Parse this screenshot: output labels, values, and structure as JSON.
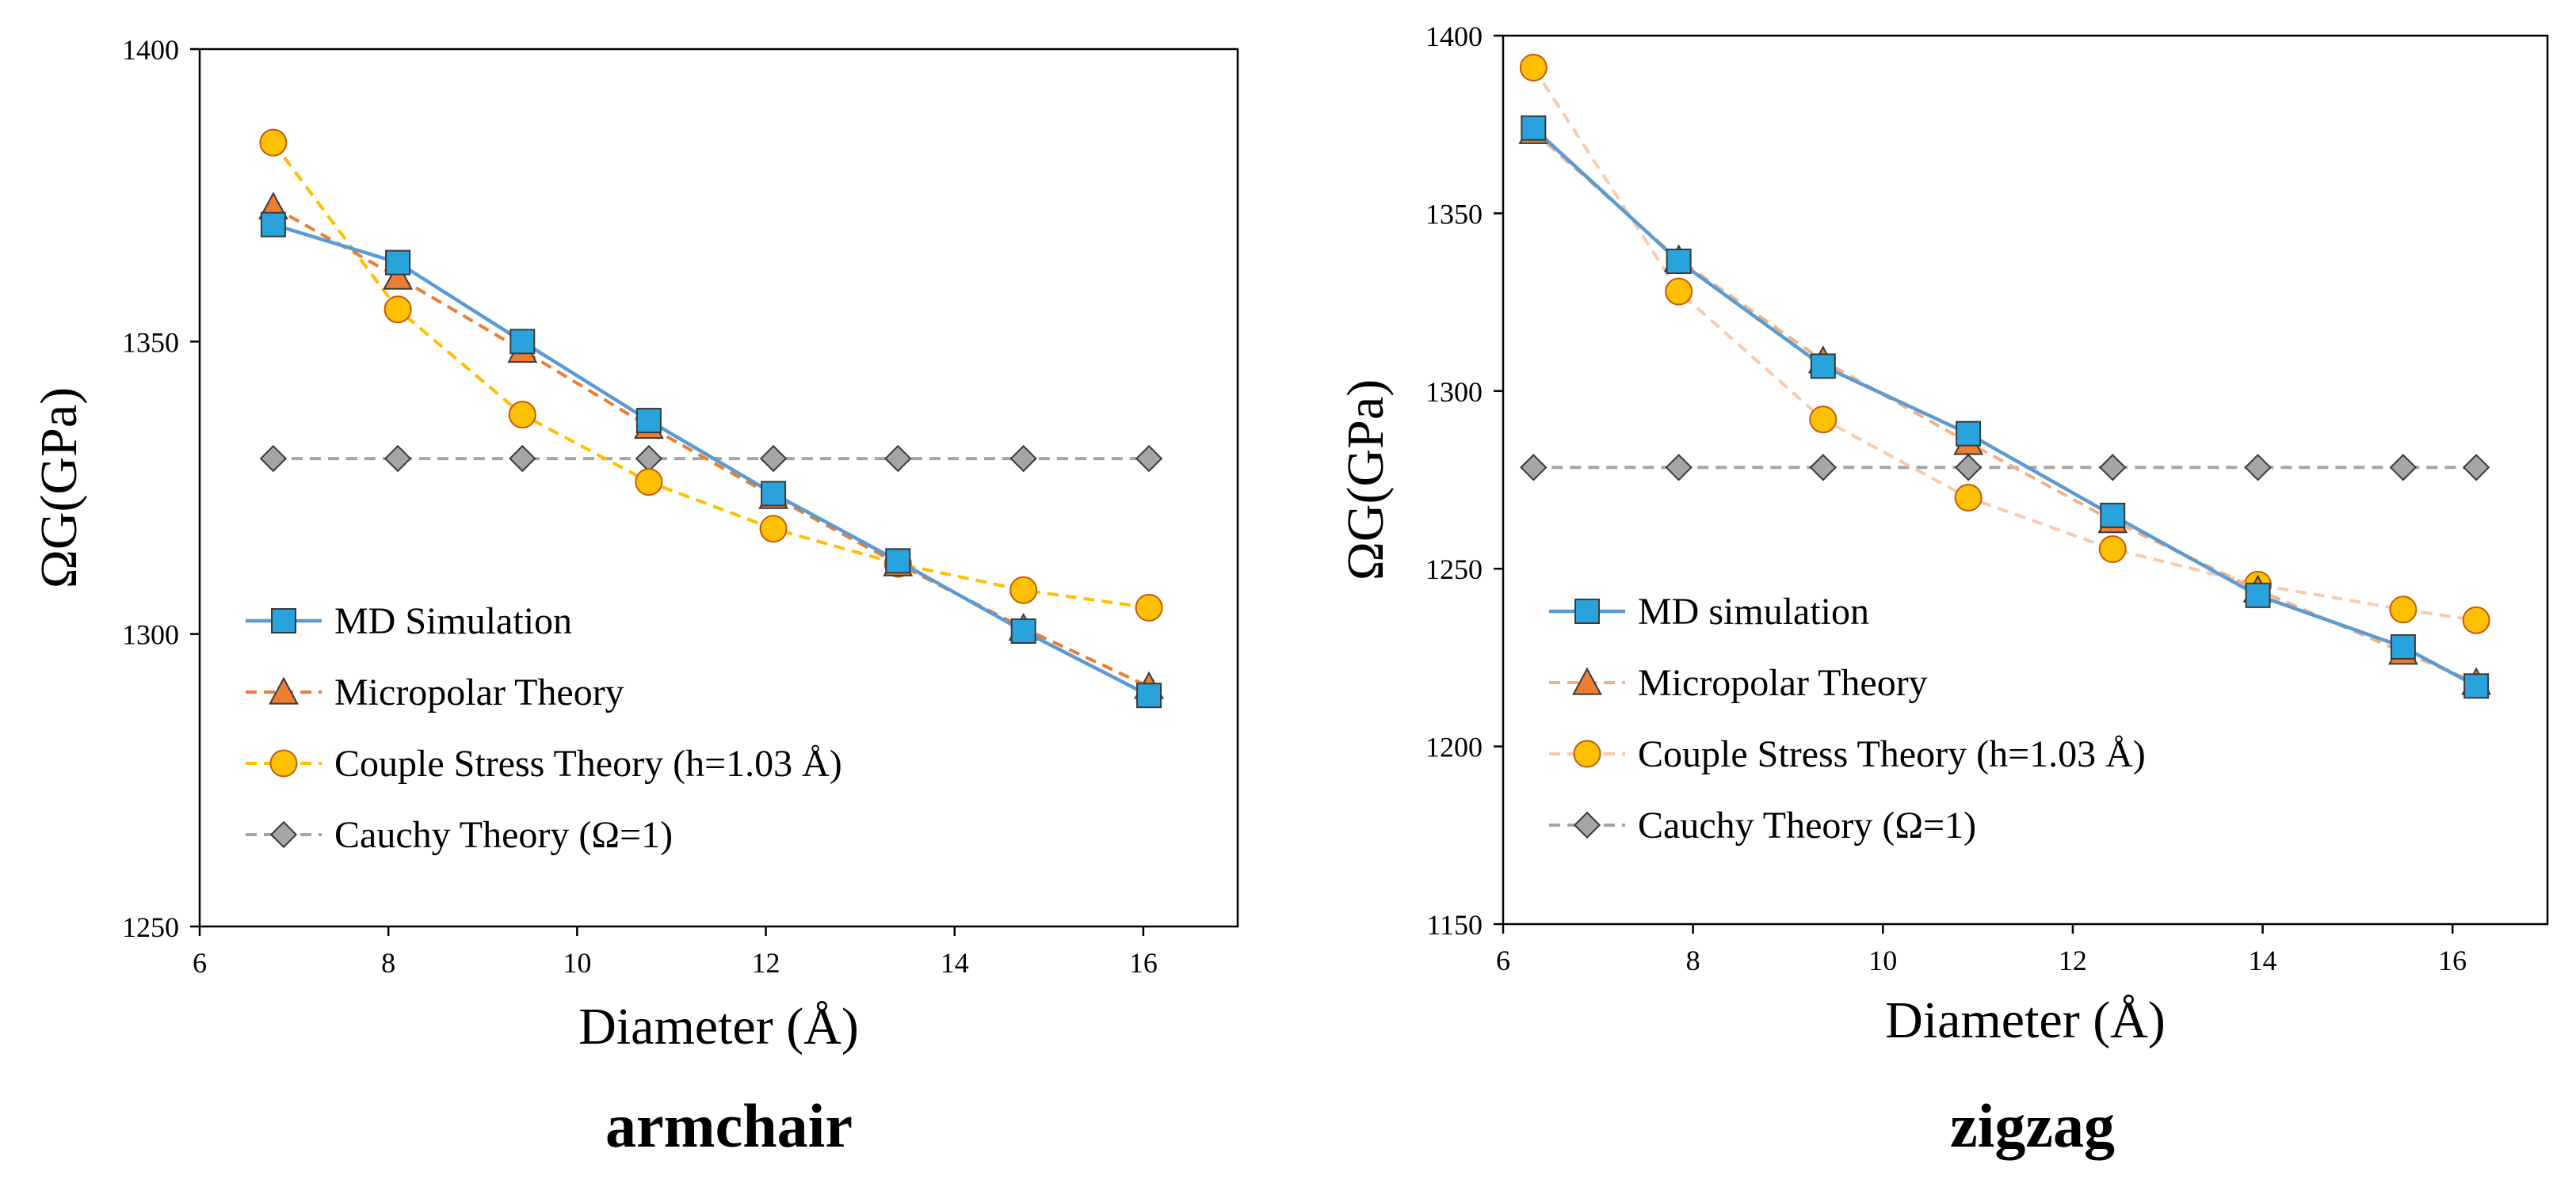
{
  "chart_data": [
    {
      "type": "line",
      "subtitle": "armchair",
      "xlabel": "Diameter (Å)",
      "ylabel": "ΩG(GPa)",
      "xlim": [
        6,
        17
      ],
      "ylim": [
        1250,
        1400
      ],
      "xticks": [
        6,
        8,
        10,
        12,
        14,
        16
      ],
      "yticks": [
        1250,
        1300,
        1350,
        1400
      ],
      "legend_position": "bottom-left",
      "grid": false,
      "series": [
        {
          "name": "MD Simulation",
          "marker": "square",
          "color": "#29A3DC",
          "line_color": "#5B9BD5",
          "line_style": "solid",
          "x": [
            6.78,
            8.1,
            9.42,
            10.76,
            12.08,
            13.4,
            14.73,
            16.06
          ],
          "y": [
            1370,
            1363.5,
            1350,
            1336.5,
            1324,
            1312.5,
            1300.5,
            1289.5
          ]
        },
        {
          "name": "Micropolar Theory",
          "marker": "triangle",
          "color": "#ED7D31",
          "line_color": "#ED7D31",
          "line_style": "dashed",
          "x": [
            6.78,
            8.1,
            9.42,
            10.76,
            12.08,
            13.4,
            14.73,
            16.06
          ],
          "y": [
            1373,
            1361,
            1348.5,
            1335.5,
            1323.5,
            1312,
            1301,
            1291
          ]
        },
        {
          "name": "Couple Stress Theory (h=1.03 Å)",
          "marker": "circle",
          "color": "#FFC000",
          "line_color": "#FFC000",
          "line_style": "dashed",
          "x": [
            6.78,
            8.1,
            9.42,
            10.76,
            12.08,
            13.4,
            14.73,
            16.06
          ],
          "y": [
            1384,
            1355.5,
            1337.5,
            1326,
            1318,
            1312,
            1307.5,
            1304.5
          ]
        },
        {
          "name": "Cauchy Theory (Ω=1)",
          "marker": "diamond",
          "color": "#A5A5A5",
          "line_color": "#A5A5A5",
          "line_style": "dashed",
          "x": [
            6.78,
            8.1,
            9.42,
            10.76,
            12.08,
            13.4,
            14.73,
            16.06
          ],
          "y": [
            1330,
            1330,
            1330,
            1330,
            1330,
            1330,
            1330,
            1330
          ]
        }
      ]
    },
    {
      "type": "line",
      "subtitle": "zigzag",
      "xlabel": "Diameter (Å)",
      "ylabel": "ΩG(GPa)",
      "xlim": [
        6,
        17
      ],
      "ylim": [
        1150,
        1400
      ],
      "xticks": [
        6,
        8,
        10,
        12,
        14,
        16
      ],
      "yticks": [
        1150,
        1200,
        1250,
        1300,
        1350,
        1400
      ],
      "legend_position": "bottom-left",
      "grid": false,
      "series": [
        {
          "name": "MD simulation",
          "marker": "square",
          "color": "#29A3DC",
          "line_color": "#5B9BD5",
          "line_style": "solid",
          "x": [
            6.32,
            7.85,
            9.37,
            10.9,
            12.42,
            13.95,
            15.48,
            16.25
          ],
          "y": [
            1374,
            1336.5,
            1307,
            1288,
            1265,
            1242.5,
            1228,
            1217
          ]
        },
        {
          "name": "Micropolar Theory",
          "marker": "triangle",
          "color": "#ED7D31",
          "line_color": "#F4B183",
          "line_style": "dashed",
          "x": [
            6.32,
            7.85,
            9.37,
            10.9,
            12.42,
            13.95,
            15.48,
            16.25
          ],
          "y": [
            1373,
            1337,
            1308.5,
            1285.5,
            1263.5,
            1244,
            1226.5,
            1218
          ]
        },
        {
          "name": "Couple Stress Theory (h=1.03 Å)",
          "marker": "circle",
          "color": "#FFC000",
          "line_color": "#F8CBAD",
          "line_style": "dashed",
          "x": [
            6.32,
            7.85,
            9.37,
            10.9,
            12.42,
            13.95,
            15.48,
            16.25
          ],
          "y": [
            1391,
            1328,
            1292,
            1270,
            1255.5,
            1245.5,
            1238.5,
            1235.5
          ]
        },
        {
          "name": "Cauchy Theory (Ω=1)",
          "marker": "diamond",
          "color": "#A5A5A5",
          "line_color": "#A5A5A5",
          "line_style": "dashed",
          "x": [
            6.32,
            7.85,
            9.37,
            10.9,
            12.42,
            13.95,
            15.48,
            16.25
          ],
          "y": [
            1278.5,
            1278.5,
            1278.5,
            1278.5,
            1278.5,
            1278.5,
            1278.5,
            1278.5
          ]
        }
      ]
    }
  ]
}
